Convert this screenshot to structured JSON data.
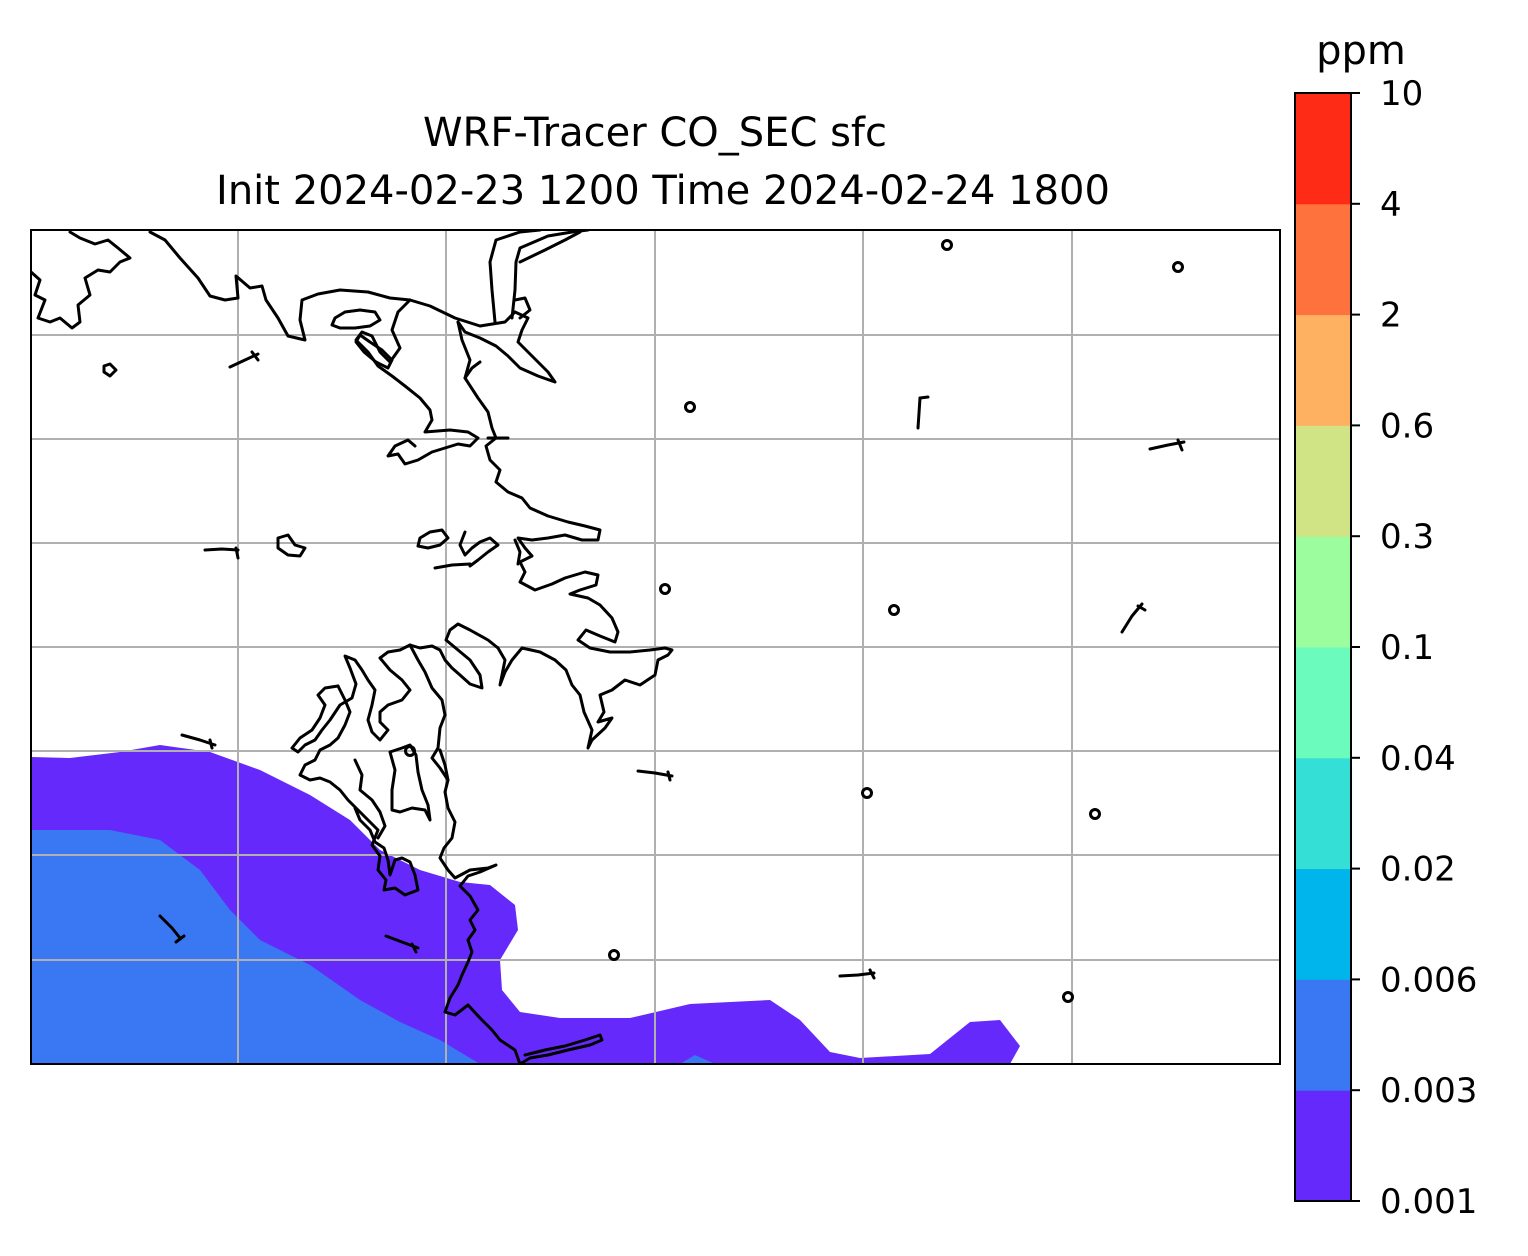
{
  "map": {
    "title_line1": "WRF-Tracer CO_SEC sfc",
    "title_line2": "Init 2024-02-23 1200 Time 2024-02-24 1800",
    "gridlines": true
  },
  "colorbar": {
    "unit_label": "ppm",
    "levels": [
      "0.001",
      "0.003",
      "0.006",
      "0.02",
      "0.04",
      "0.1",
      "0.3",
      "0.6",
      "2",
      "4",
      "10"
    ],
    "colors": [
      "#6629fb",
      "#3a77f2",
      "#00b5ec",
      "#34e0d6",
      "#6afbbd",
      "#9bfd9e",
      "#d0e385",
      "#feb261",
      "#fe733d",
      "#fe2b17"
    ]
  },
  "fields": {
    "band_0001_color": "#6629fb",
    "band_0003_color": "#3a77f2"
  }
}
